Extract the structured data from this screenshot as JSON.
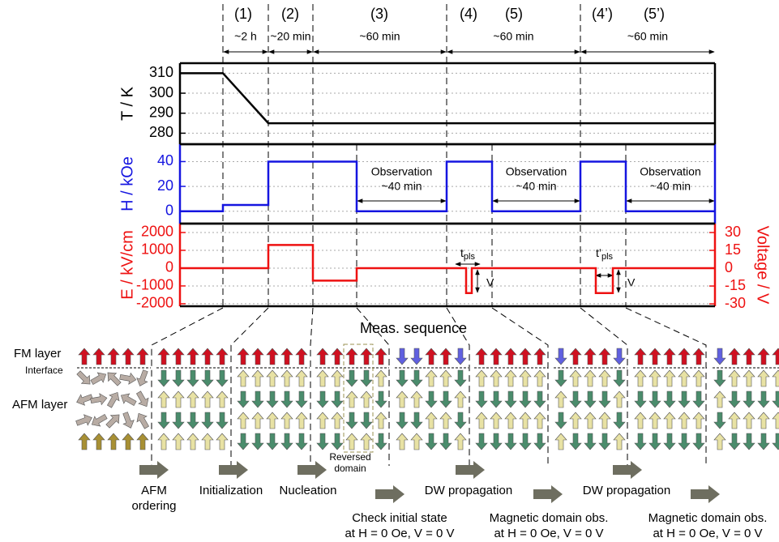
{
  "phase_labels": [
    "(1)",
    "(2)",
    "(3)",
    "(4)",
    "(5)",
    "(4’)",
    "(5’)"
  ],
  "durations": [
    "~2 h",
    "~20 min",
    "~60 min",
    "~60 min",
    "~60 min"
  ],
  "x_label": "Meas. sequence",
  "chart_data": [
    {
      "type": "line",
      "y_label": "T / K",
      "color": "#000000",
      "grid": true,
      "xlim": [
        0,
        660
      ],
      "ylim": [
        274.5,
        315
      ],
      "yticks": [
        280,
        290,
        300,
        310
      ],
      "x": [
        0,
        53,
        109,
        660
      ],
      "values": [
        310,
        310,
        285,
        285
      ]
    },
    {
      "type": "line",
      "y_label": "H / kOe",
      "color": "#1515e0",
      "grid": true,
      "xlim": [
        0,
        660
      ],
      "ylim": [
        -10,
        54
      ],
      "yticks": [
        0,
        20,
        40
      ],
      "x": [
        0,
        53,
        53,
        109,
        109,
        218,
        218,
        329,
        329,
        385,
        385,
        494,
        494,
        550,
        550,
        660
      ],
      "values": [
        0,
        0,
        5,
        5,
        40,
        40,
        0,
        0,
        40,
        40,
        0,
        0,
        40,
        40,
        0,
        0
      ]
    },
    {
      "type": "line",
      "y_label": "E / kV/cm",
      "y2_label": "Voltage / V",
      "color": "#ee1111",
      "grid": true,
      "xlim": [
        0,
        660
      ],
      "ylim": [
        -2140,
        2500
      ],
      "yticks": [
        -2000,
        -1000,
        0,
        1000,
        2000
      ],
      "y2lim": [
        -32,
        37.5
      ],
      "y2ticks": [
        -30,
        -15,
        0,
        15,
        30
      ],
      "x": [
        0,
        109,
        109,
        164,
        164,
        218,
        218,
        353,
        353,
        360,
        360,
        513,
        513,
        534,
        534,
        660
      ],
      "values": [
        0,
        0,
        1300,
        1300,
        -700,
        -700,
        0,
        0,
        -1400,
        -1400,
        0,
        0,
        -1400,
        -1400,
        0,
        0
      ]
    }
  ],
  "observations": [
    [
      "Observation",
      "~40 min"
    ],
    [
      "Observation",
      "~40 min"
    ],
    [
      "Observation",
      "~40 min"
    ]
  ],
  "pulses": [
    {
      "t": "t",
      "sub": "pls",
      "v": "V"
    },
    {
      "t": "t’",
      "sub": "pls",
      "v": "V"
    }
  ],
  "diagram": {
    "fm_layer": "FM layer",
    "interface": "Interface",
    "afm_layer": "AFM layer",
    "reversed_domain": [
      "Reversed",
      "domain"
    ],
    "steps": [
      [
        "AFM",
        "ordering"
      ],
      [
        "Initialization"
      ],
      [
        "Nucleation"
      ],
      [
        "Check initial state",
        "at H = 0 Oe, V = 0 V"
      ],
      [
        "DW propagation"
      ],
      [
        "Magnetic domain obs.",
        "at H = 0 Oe, V = 0 V"
      ],
      [
        "DW propagation"
      ],
      [
        "Magnetic domain obs.",
        "at H = 0 Oe, V = 0 V"
      ]
    ]
  }
}
